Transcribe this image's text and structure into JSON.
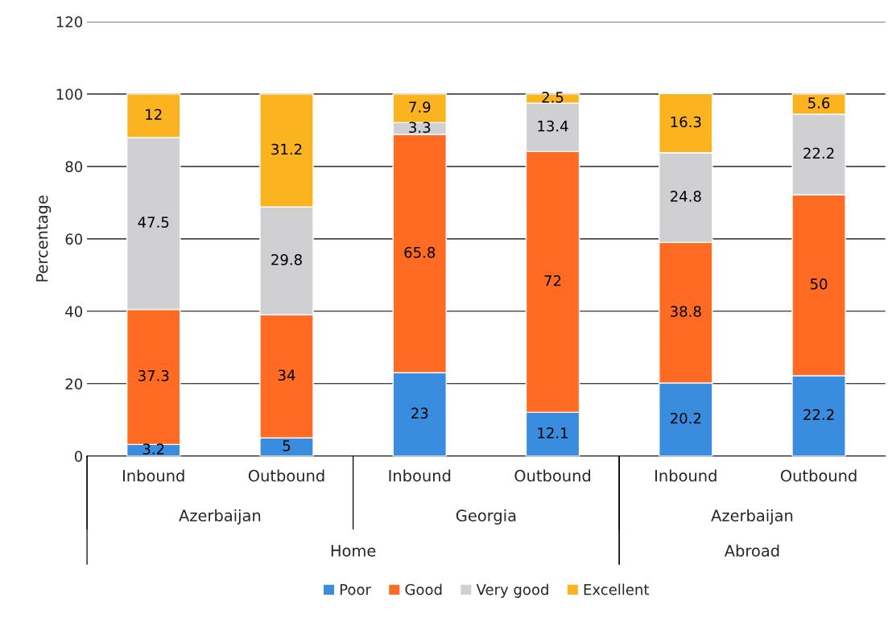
{
  "chart_data": {
    "type": "bar",
    "stacked": true,
    "ylabel": "Percentage",
    "categories": [
      "Inbound",
      "Outbound",
      "Inbound",
      "Outbound",
      "Inbound",
      "Outbound"
    ],
    "series": [
      {
        "name": "Poor",
        "color": "#3a8dde",
        "values": [
          3.2,
          5,
          23,
          12.1,
          20.2,
          22.2
        ]
      },
      {
        "name": "Good",
        "color": "#ff6b22",
        "values": [
          37.3,
          34,
          65.8,
          72,
          38.8,
          50
        ]
      },
      {
        "name": "Very good",
        "color": "#d0d0d2",
        "values": [
          47.5,
          29.8,
          3.3,
          13.4,
          24.8,
          22.2
        ]
      },
      {
        "name": "Excellent",
        "color": "#fbb41f",
        "values": [
          12,
          31.2,
          7.9,
          2.5,
          16.3,
          5.6
        ]
      }
    ],
    "annotations": [
      "Azerbaijan",
      "Georgia",
      "Azerbaijan",
      "Home",
      "Abroad"
    ],
    "ylim": [
      0,
      120
    ],
    "yticks": [
      0,
      20,
      40,
      60,
      80,
      100,
      120
    ],
    "grid": "y",
    "legend": "bottom",
    "data_labels": true
  }
}
